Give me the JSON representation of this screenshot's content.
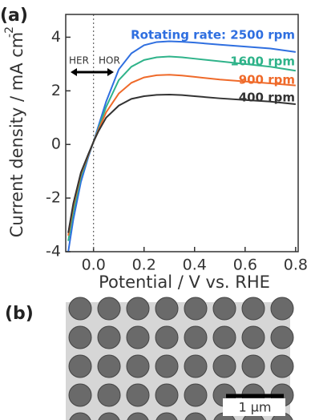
{
  "chart_data": {
    "type": "line",
    "panel_label": "(a)",
    "x_label": "Potential / V vs. RHE",
    "y_label": "Current density / mA cm",
    "y_label_exponent": "-2",
    "xlim": [
      -0.11,
      0.81
    ],
    "ylim": [
      -4,
      4.85
    ],
    "xticks": [
      {
        "value": 0,
        "label": "0.0"
      },
      0.2,
      0.4,
      0.6,
      0.8
    ],
    "yticks": [
      -4,
      -2,
      0,
      2,
      4
    ],
    "reference_line_x": 0,
    "annotations": [
      "HER",
      "HOR"
    ],
    "x": [
      -0.1,
      -0.08,
      -0.05,
      -0.02,
      0,
      0.02,
      0.05,
      0.1,
      0.15,
      0.2,
      0.25,
      0.3,
      0.35,
      0.4,
      0.5,
      0.6,
      0.7,
      0.8
    ],
    "series": [
      {
        "name": "Rotating rate: 2500 rpm",
        "color": "#2f6fe0",
        "values": [
          -4.0,
          -2.8,
          -1.4,
          -0.45,
          0.1,
          0.7,
          1.6,
          2.8,
          3.4,
          3.7,
          3.82,
          3.85,
          3.83,
          3.8,
          3.72,
          3.65,
          3.58,
          3.45
        ]
      },
      {
        "name": "1600 rpm",
        "color": "#2fb38a",
        "values": [
          -3.6,
          -2.5,
          -1.2,
          -0.4,
          0.1,
          0.6,
          1.4,
          2.4,
          2.9,
          3.15,
          3.25,
          3.28,
          3.25,
          3.2,
          3.1,
          3.0,
          2.9,
          2.75
        ]
      },
      {
        "name": "900 rpm",
        "color": "#ef6a2a",
        "values": [
          -3.4,
          -2.3,
          -1.1,
          -0.38,
          0.1,
          0.55,
          1.2,
          1.9,
          2.3,
          2.5,
          2.58,
          2.6,
          2.57,
          2.52,
          2.42,
          2.35,
          2.28,
          2.2
        ]
      },
      {
        "name": "400 rpm",
        "color": "#333333",
        "values": [
          -3.3,
          -2.2,
          -1.05,
          -0.35,
          0.1,
          0.5,
          1.0,
          1.45,
          1.7,
          1.8,
          1.85,
          1.86,
          1.84,
          1.8,
          1.72,
          1.66,
          1.6,
          1.5
        ]
      }
    ]
  },
  "micrograph": {
    "panel_label": "(b)",
    "scale_bar": "1 µm"
  }
}
